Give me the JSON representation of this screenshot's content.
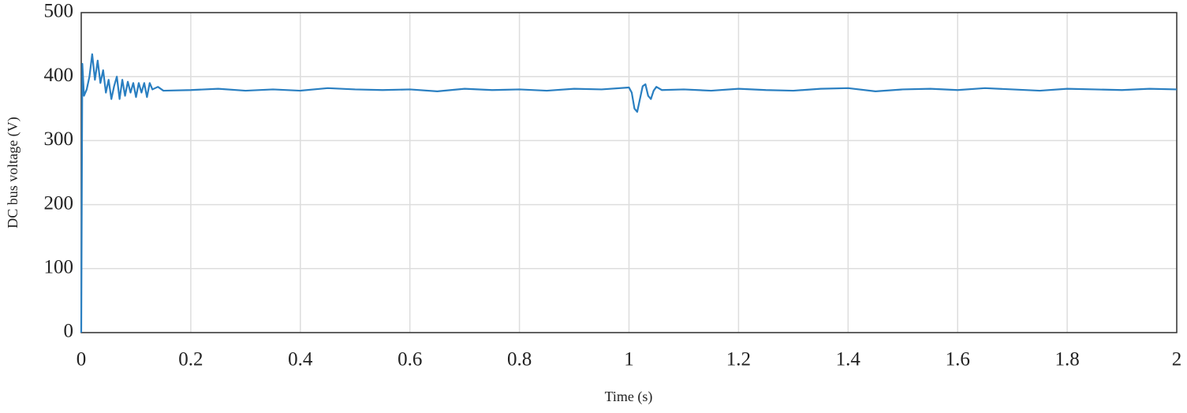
{
  "chart_data": {
    "type": "line",
    "xlabel": "Time (s)",
    "ylabel": "DC bus voltage (V)",
    "x": [
      0,
      0.002,
      0.005,
      0.01,
      0.015,
      0.02,
      0.025,
      0.03,
      0.035,
      0.04,
      0.045,
      0.05,
      0.055,
      0.06,
      0.065,
      0.07,
      0.075,
      0.08,
      0.085,
      0.09,
      0.095,
      0.1,
      0.105,
      0.11,
      0.115,
      0.12,
      0.125,
      0.13,
      0.14,
      0.15,
      0.2,
      0.25,
      0.3,
      0.35,
      0.4,
      0.45,
      0.5,
      0.55,
      0.6,
      0.65,
      0.7,
      0.75,
      0.8,
      0.85,
      0.9,
      0.95,
      1.0,
      1.005,
      1.01,
      1.015,
      1.02,
      1.025,
      1.03,
      1.035,
      1.04,
      1.045,
      1.05,
      1.06,
      1.1,
      1.15,
      1.2,
      1.25,
      1.3,
      1.35,
      1.4,
      1.45,
      1.5,
      1.55,
      1.6,
      1.65,
      1.7,
      1.75,
      1.8,
      1.85,
      1.9,
      1.95,
      2.0
    ],
    "series": [
      {
        "color": "#2a7fc1",
        "values": [
          0,
          420,
          370,
          380,
          400,
          435,
          395,
          425,
          390,
          410,
          375,
          395,
          365,
          385,
          400,
          365,
          395,
          370,
          392,
          375,
          390,
          368,
          390,
          375,
          390,
          368,
          390,
          380,
          384,
          378,
          379,
          381,
          378,
          380,
          378,
          382,
          380,
          379,
          380,
          377,
          381,
          379,
          380,
          378,
          381,
          380,
          383,
          375,
          350,
          345,
          365,
          385,
          388,
          370,
          365,
          378,
          384,
          379,
          380,
          378,
          381,
          379,
          378,
          381,
          382,
          377,
          380,
          381,
          379,
          382,
          380,
          378,
          381,
          380,
          379,
          381,
          380
        ]
      }
    ],
    "xlim": [
      0,
      2
    ],
    "xticks": [
      0,
      0.2,
      0.4,
      0.6,
      0.8,
      1,
      1.2,
      1.4,
      1.6,
      1.8,
      2
    ],
    "ylim": [
      0,
      500
    ],
    "yticks": [
      0,
      100,
      200,
      300,
      400,
      500
    ],
    "grid": true
  }
}
